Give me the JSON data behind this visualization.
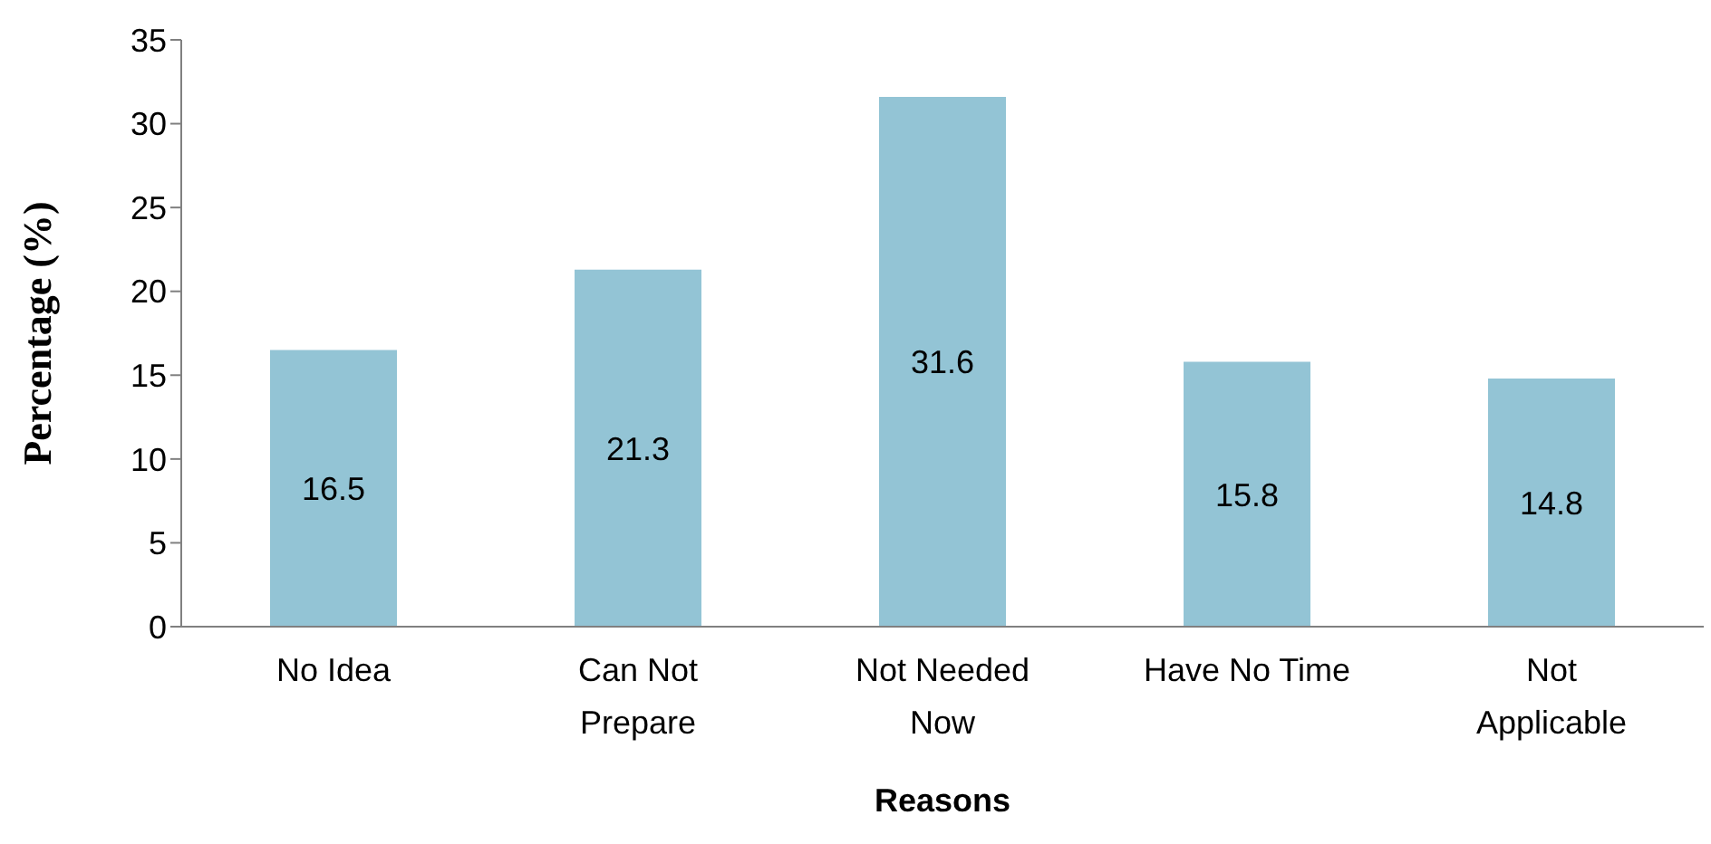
{
  "chart_data": {
    "type": "bar",
    "xlabel": "Reasons",
    "ylabel": "Percentage (%)",
    "categories": [
      "No Idea",
      "Can Not Prepare",
      "Not Needed Now",
      "Have No Time",
      "Not Applicable"
    ],
    "values": [
      16.5,
      21.3,
      31.6,
      15.8,
      14.8
    ],
    "color": "#93c4d5",
    "ylim": [
      0,
      35
    ],
    "yticks": [
      0,
      5,
      10,
      15,
      20,
      25,
      30,
      35
    ],
    "data_labels": true
  }
}
